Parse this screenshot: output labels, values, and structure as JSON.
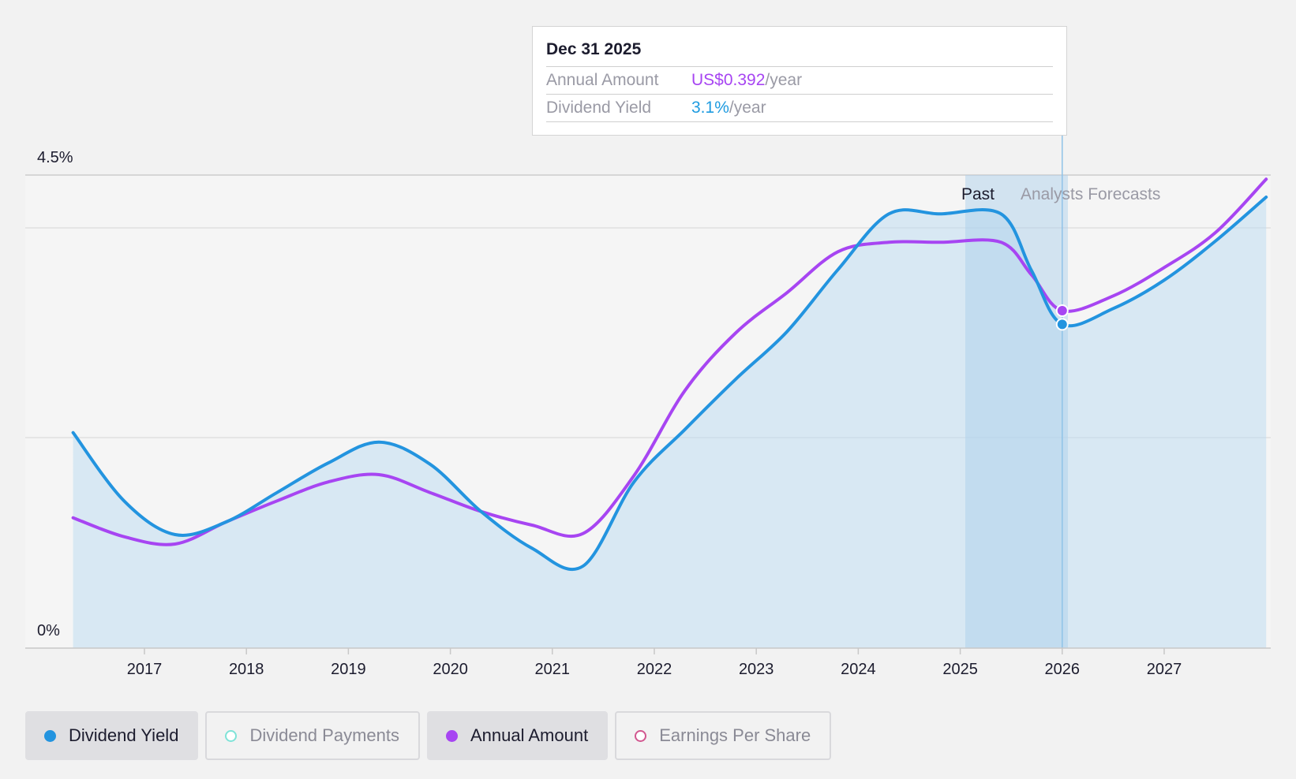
{
  "tooltip": {
    "date": "Dec 31 2025",
    "amount_label": "Annual Amount",
    "amount_value": "US$0.392",
    "amount_unit": "/year",
    "yield_label": "Dividend Yield",
    "yield_value": "3.1%",
    "yield_unit": "/year"
  },
  "legend": [
    {
      "label": "Dividend Yield",
      "active": true,
      "color": "#2394df",
      "filled": true
    },
    {
      "label": "Dividend Payments",
      "active": false,
      "color": "#7fe3d8",
      "filled": false
    },
    {
      "label": "Annual Amount",
      "active": true,
      "color": "#a745f2",
      "filled": true
    },
    {
      "label": "Earnings Per Share",
      "active": false,
      "color": "#d2578f",
      "filled": false
    }
  ],
  "colors": {
    "yield": "#2394df",
    "amount": "#a745f2",
    "area": "#c0dcf0",
    "past_band": "#a9cfeb"
  },
  "chart_data": {
    "type": "line",
    "ylim": [
      0,
      4.5
    ],
    "y_tick_labels": [
      "4.5%",
      "0%"
    ],
    "x_tick_labels": [
      "2017",
      "2018",
      "2019",
      "2020",
      "2021",
      "2022",
      "2023",
      "2024",
      "2025",
      "2026",
      "2027"
    ],
    "region_labels": {
      "past": "Past",
      "forecast": "Analysts Forecasts"
    },
    "highlight_date": 2026.0,
    "series": [
      {
        "name": "Dividend Yield",
        "x": [
          2016.3,
          2016.8,
          2017.3,
          2017.8,
          2018.3,
          2018.8,
          2019.3,
          2019.8,
          2020.3,
          2020.8,
          2021.3,
          2021.8,
          2022.3,
          2022.8,
          2023.3,
          2023.8,
          2024.3,
          2024.8,
          2025.4,
          2025.7,
          2026.0,
          2026.5,
          2027.0,
          2027.5,
          2028.0
        ],
        "values": [
          2.05,
          1.4,
          1.08,
          1.2,
          1.48,
          1.76,
          1.96,
          1.75,
          1.3,
          0.95,
          0.78,
          1.58,
          2.08,
          2.56,
          3.01,
          3.6,
          4.13,
          4.13,
          4.13,
          3.59,
          3.08,
          3.23,
          3.5,
          3.87,
          4.29
        ]
      },
      {
        "name": "Annual Amount",
        "x": [
          2016.3,
          2016.8,
          2017.3,
          2017.8,
          2018.3,
          2018.8,
          2019.3,
          2019.8,
          2020.3,
          2020.8,
          2021.3,
          2021.8,
          2022.3,
          2022.8,
          2023.3,
          2023.8,
          2024.3,
          2024.8,
          2025.4,
          2025.7,
          2026.0,
          2026.5,
          2027.0,
          2027.5,
          2028.0
        ],
        "values": [
          1.24,
          1.06,
          0.99,
          1.2,
          1.4,
          1.58,
          1.65,
          1.48,
          1.3,
          1.17,
          1.09,
          1.64,
          2.45,
          3.0,
          3.38,
          3.77,
          3.86,
          3.86,
          3.86,
          3.55,
          3.21,
          3.35,
          3.62,
          3.95,
          4.46
        ]
      }
    ]
  }
}
